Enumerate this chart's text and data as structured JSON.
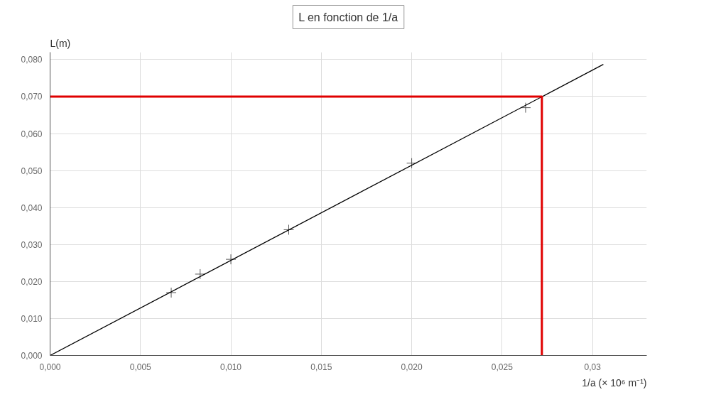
{
  "chart_data": {
    "type": "scatter",
    "title": "L en fonction de 1/a",
    "xlabel": "1/a (× 10⁶ m⁻¹)",
    "ylabel": "L(m)",
    "xlim": [
      0,
      0.033
    ],
    "ylim": [
      0,
      0.082
    ],
    "xticks": [
      {
        "value": 0,
        "label": "0,000"
      },
      {
        "value": 0.005,
        "label": "0,005"
      },
      {
        "value": 0.01,
        "label": "0,010"
      },
      {
        "value": 0.015,
        "label": "0,015"
      },
      {
        "value": 0.02,
        "label": "0,020"
      },
      {
        "value": 0.025,
        "label": "0,025"
      },
      {
        "value": 0.03,
        "label": "0,03"
      }
    ],
    "yticks": [
      {
        "value": 0,
        "label": "0,000"
      },
      {
        "value": 0.01,
        "label": "0,010"
      },
      {
        "value": 0.02,
        "label": "0,020"
      },
      {
        "value": 0.03,
        "label": "0,030"
      },
      {
        "value": 0.04,
        "label": "0,040"
      },
      {
        "value": 0.05,
        "label": "0,050"
      },
      {
        "value": 0.06,
        "label": "0,060"
      },
      {
        "value": 0.07,
        "label": "0,070"
      },
      {
        "value": 0.08,
        "label": "0,080"
      }
    ],
    "grid": true,
    "series": [
      {
        "marker": "cross",
        "color": "#555555",
        "x": [
          0.0067,
          0.0083,
          0.01,
          0.0132,
          0.02,
          0.0263
        ],
        "values": [
          0.017,
          0.022,
          0.026,
          0.034,
          0.052,
          0.067
        ]
      },
      {
        "type": "line",
        "color": "#000000",
        "x": [
          0,
          0.0306
        ],
        "values": [
          0,
          0.0787
        ]
      },
      {
        "type": "line",
        "color": "#e00000",
        "x": [
          0,
          0.0272,
          0.0272
        ],
        "values": [
          0.07,
          0.07,
          0
        ]
      }
    ]
  }
}
